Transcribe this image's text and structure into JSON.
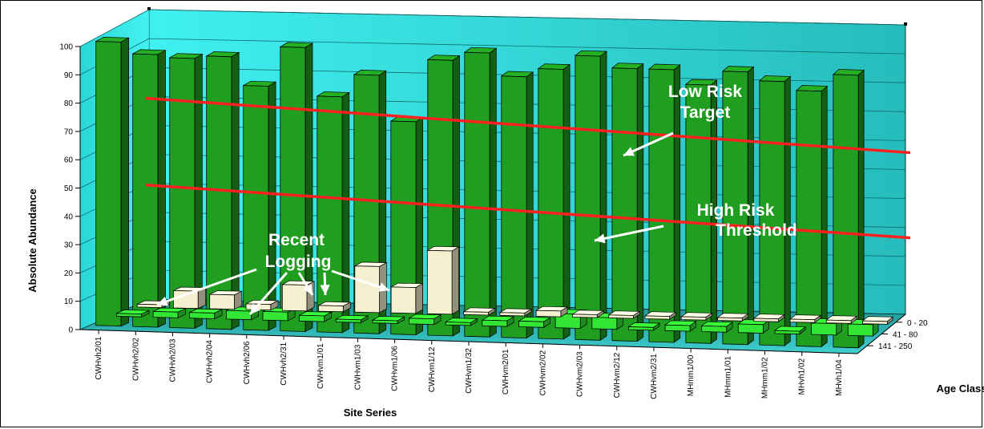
{
  "chart_data": {
    "type": "bar",
    "subtype": "3d-bar",
    "ylabel": "Absolute Abundance",
    "xlabel": "Site Series",
    "zlabel": "Age Class",
    "ylim": [
      0,
      100
    ],
    "yticks": [
      0,
      10,
      20,
      30,
      40,
      50,
      60,
      70,
      80,
      90,
      100
    ],
    "categories": [
      "CWHvh2/01",
      "CWHvh2/02",
      "CWHvh2/03",
      "CWHvh2/04",
      "CWHvh2/06",
      "CWHvh2/31",
      "CWHvm1/01",
      "CWHvm1/03",
      "CWHvm1/06",
      "CWHvm1/12",
      "CWHvm1/32",
      "CWHvm2/01",
      "CWHvm2/02",
      "CWHvm2/03",
      "CWHvm2/12",
      "CWHvm2/31",
      "MHmm1/00",
      "MHmm1/01",
      "MHmm1/02",
      "MHvh1/02",
      "MHvh1/04"
    ],
    "series": [
      {
        "name": "0 - 20",
        "color": "#f5f0cf",
        "values": [
          1,
          6,
          5,
          2,
          9,
          2,
          16,
          9,
          22,
          1,
          1,
          2,
          1,
          1,
          1,
          1,
          1,
          1,
          1,
          1,
          1
        ]
      },
      {
        "name": "41 - 80",
        "color": "#33e633",
        "values": [
          1,
          2,
          2,
          3,
          3,
          2,
          1,
          1,
          2,
          1,
          2,
          2,
          5,
          4,
          1,
          2,
          2,
          3,
          1,
          4,
          4
        ]
      },
      {
        "name": "141 - 250",
        "color": "#1f9e1f",
        "values": [
          100,
          96,
          95,
          96,
          86,
          100,
          83,
          91,
          75,
          97,
          100,
          92,
          95,
          100,
          96,
          96,
          91,
          96,
          93,
          90,
          96
        ]
      }
    ],
    "reference_lines": [
      {
        "label": "Low Risk Target",
        "value": 70,
        "color": "#ff2020"
      },
      {
        "label": "High Risk Threshold",
        "value": 40,
        "color": "#ff2020"
      }
    ],
    "annotations": [
      "Low Risk",
      "Target",
      "High Risk",
      "Threshold",
      "Recent",
      "Logging"
    ],
    "wall_color": "#33e0e0",
    "grid": true
  }
}
